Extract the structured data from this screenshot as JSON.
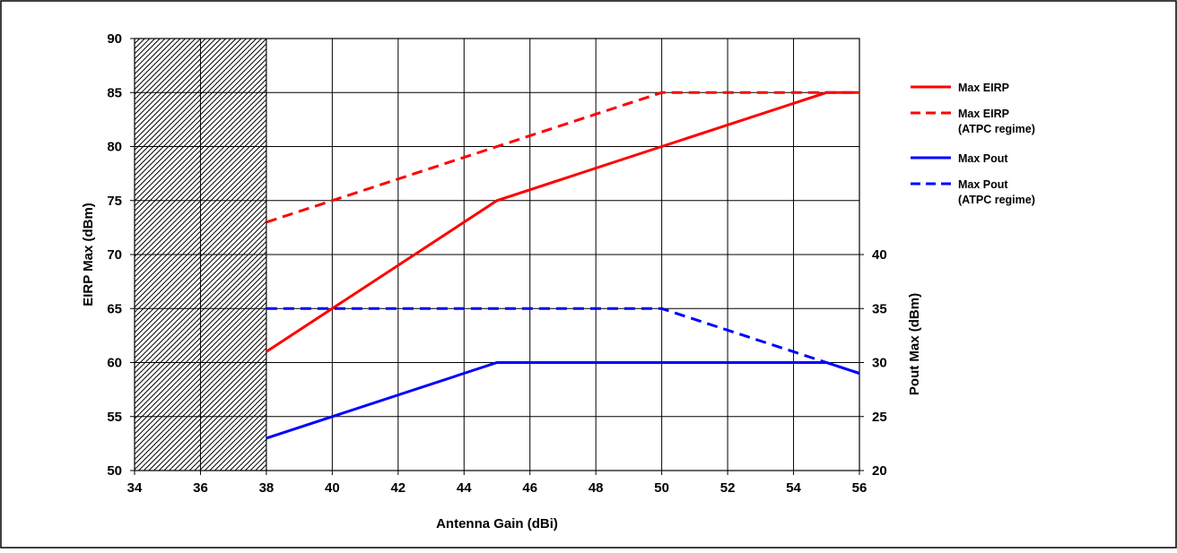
{
  "chart_data": {
    "type": "line",
    "xlabel": "Antenna Gain (dBi)",
    "ylabel_left": "EIRP Max (dBm)",
    "ylabel_right": "Pout Max (dBm)",
    "xlim": [
      34,
      56
    ],
    "ylim_left": [
      50,
      90
    ],
    "ylim_right": [
      20,
      40
    ],
    "x_ticks": [
      "34",
      "36",
      "38",
      "40",
      "42",
      "44",
      "46",
      "48",
      "50",
      "52",
      "54",
      "56"
    ],
    "y_ticks_left": [
      "50",
      "55",
      "60",
      "65",
      "70",
      "75",
      "80",
      "85",
      "90"
    ],
    "y_ticks_right": [
      "20",
      "25",
      "30",
      "35",
      "40"
    ],
    "grid": true,
    "hatched_region": {
      "x_from": 34,
      "x_to": 38
    },
    "legend_position": "right",
    "series": [
      {
        "name": "Max EIRP",
        "axis": "left",
        "color": "#ff0000",
        "dash": "solid",
        "points": [
          [
            38,
            61
          ],
          [
            45,
            75
          ],
          [
            50,
            80
          ],
          [
            55,
            85
          ],
          [
            56,
            85
          ]
        ]
      },
      {
        "name": "Max EIRP\n(ATPC regime)",
        "axis": "left",
        "color": "#ff0000",
        "dash": "dashed",
        "points": [
          [
            38,
            73
          ],
          [
            40,
            75
          ],
          [
            45,
            80
          ],
          [
            50,
            85
          ],
          [
            56,
            85
          ]
        ]
      },
      {
        "name": "Max Pout",
        "axis": "right",
        "color": "#0000ff",
        "dash": "solid",
        "points": [
          [
            38,
            23
          ],
          [
            40,
            25
          ],
          [
            45,
            30
          ],
          [
            55,
            30
          ],
          [
            56,
            29
          ]
        ]
      },
      {
        "name": "Max Pout\n(ATPC regime)",
        "axis": "right",
        "color": "#0000ff",
        "dash": "dashed",
        "points": [
          [
            38,
            35
          ],
          [
            45,
            35
          ],
          [
            50,
            35
          ],
          [
            55,
            30
          ],
          [
            56,
            29
          ]
        ]
      }
    ]
  }
}
